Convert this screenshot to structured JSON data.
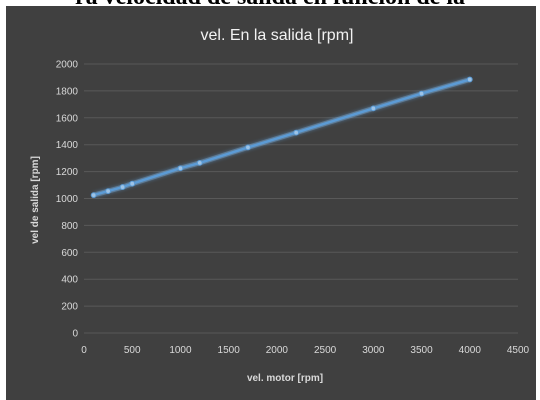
{
  "page": {
    "caption_fragment": "ra velocidad de salida en función de la"
  },
  "colors": {
    "panel_bg": "#404040",
    "gridline": "#595959",
    "series_line": "#5b9bd5",
    "series_glow": "#9dc3e6",
    "text": "#d9d9d9"
  },
  "chart_data": {
    "type": "line",
    "title": "vel. En la salida [rpm]",
    "xlabel": "vel. motor [rpm]",
    "ylabel": "vel de salida  [rpm]",
    "xlim": [
      0,
      4500
    ],
    "ylim": [
      0,
      2000
    ],
    "xticks": [
      0,
      500,
      1000,
      1500,
      2000,
      2500,
      3000,
      3500,
      4000,
      4500
    ],
    "yticks": [
      0,
      200,
      400,
      600,
      800,
      1000,
      1200,
      1400,
      1600,
      1800,
      2000
    ],
    "grid": "horizontal",
    "legend": "none",
    "series": [
      {
        "x": [
          100,
          250,
          400,
          500,
          1000,
          1200,
          1700,
          2200,
          3000,
          3500,
          4000
        ],
        "y": [
          1025,
          1055,
          1085,
          1110,
          1225,
          1265,
          1380,
          1490,
          1670,
          1780,
          1885
        ]
      }
    ]
  }
}
